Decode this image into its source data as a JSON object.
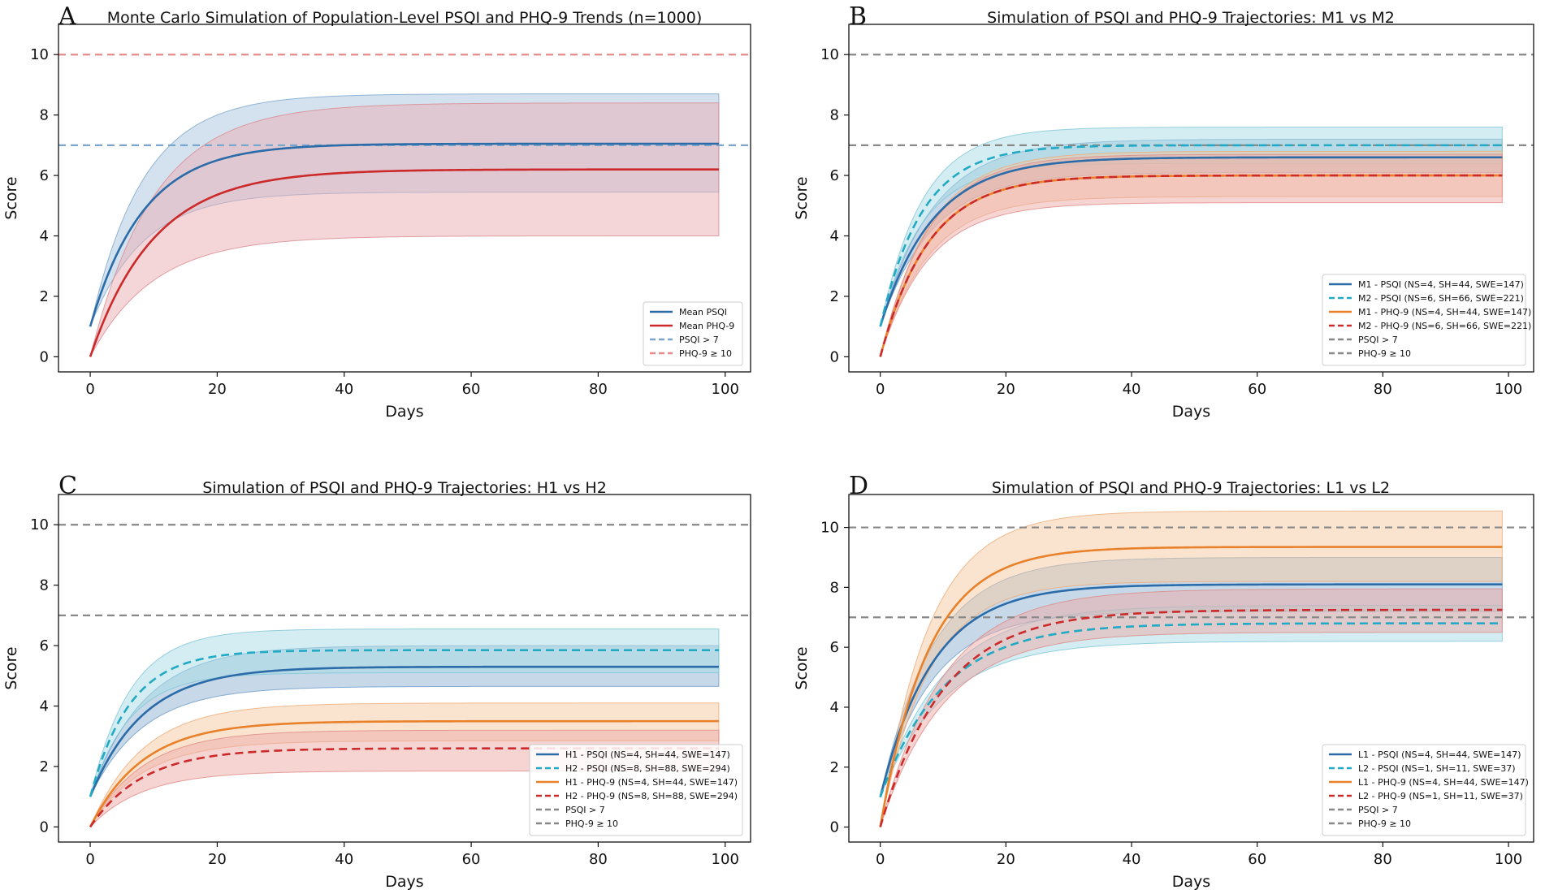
{
  "figure": {
    "panels": [
      {
        "letter": "A",
        "title": "Monte Carlo Simulation of Population-Level PSQI and PHQ-9 Trends (n=1000)",
        "xlabel": "Days",
        "ylabel": "Score",
        "xlim": [
          -5,
          104
        ],
        "ylim": [
          -0.5,
          11.0
        ],
        "xticks": [
          0,
          20,
          40,
          60,
          80,
          100
        ],
        "yticks": [
          0,
          2,
          4,
          6,
          8,
          10
        ],
        "hlines": [
          {
            "y": 7,
            "color": "#7aa5cc",
            "label": "PSQI > 7"
          },
          {
            "y": 10,
            "color": "#e88a8a",
            "label": "PHQ-9 ≥ 10"
          }
        ],
        "series": [
          {
            "name": "Mean PSQI",
            "color": "#2a6ba8",
            "dash": false,
            "start": 1,
            "plateau": 7.05,
            "rate": 0.12,
            "band_low": 5.45,
            "band_high": 8.7,
            "band_color": "#aac6df",
            "band_edge": "#7aa5cc"
          },
          {
            "name": "Mean PHQ-9",
            "color": "#cc2a2a",
            "dash": false,
            "start": 0,
            "plateau": 6.2,
            "rate": 0.1,
            "band_low": 4.0,
            "band_high": 8.4,
            "band_color": "#e9aeb3",
            "band_edge": "#d98a90"
          }
        ],
        "legend": [
          "Mean PSQI",
          "Mean PHQ-9",
          "PSQI > 7",
          "PHQ-9 ≥ 10"
        ]
      },
      {
        "letter": "B",
        "title": "Simulation of PSQI and PHQ-9 Trajectories: M1 vs M2",
        "xlabel": "Days",
        "ylabel": "Score",
        "xlim": [
          -5,
          104
        ],
        "ylim": [
          -0.5,
          11.0
        ],
        "xticks": [
          0,
          20,
          40,
          60,
          80,
          100
        ],
        "yticks": [
          0,
          2,
          4,
          6,
          8,
          10
        ],
        "hlines": [
          {
            "y": 7,
            "color": "#888888",
            "label": "PSQI > 7"
          },
          {
            "y": 10,
            "color": "#888888",
            "label": "PHQ-9 ≥ 10"
          }
        ],
        "series": [
          {
            "name": "M1 - PSQI (NS=4, SH=44, SWE=147)",
            "color": "#2a6ba8",
            "dash": false,
            "start": 1,
            "plateau": 6.6,
            "rate": 0.12,
            "band_low": 6.1,
            "band_high": 7.2,
            "band_color": "#8fb2d4",
            "band_edge": "#6e9cc7"
          },
          {
            "name": "M2 - PSQI (NS=6, SH=66, SWE=221)",
            "color": "#22aac4",
            "dash": true,
            "start": 1,
            "plateau": 7.0,
            "rate": 0.15,
            "band_low": 6.4,
            "band_high": 7.6,
            "band_color": "#a8dce6",
            "band_edge": "#7ec6d6"
          },
          {
            "name": "M1 - PHQ-9 (NS=4, SH=44, SWE=147)",
            "color": "#e8812a",
            "dash": false,
            "start": 0,
            "plateau": 6.0,
            "rate": 0.13,
            "band_low": 5.3,
            "band_high": 6.8,
            "band_color": "#f6c9a2",
            "band_edge": "#eeab78"
          },
          {
            "name": "M2 - PHQ-9 (NS=6, SH=66, SWE=221)",
            "color": "#cc2a2a",
            "dash": true,
            "start": 0,
            "plateau": 6.0,
            "rate": 0.13,
            "band_low": 5.1,
            "band_high": 6.7,
            "band_color": "#eca9a6",
            "band_edge": "#de8a86"
          }
        ],
        "legend": [
          "M1 - PSQI (NS=4, SH=44, SWE=147)",
          "M2 - PSQI (NS=6, SH=66, SWE=221)",
          "M1 - PHQ-9 (NS=4, SH=44, SWE=147)",
          "M2 - PHQ-9 (NS=6, SH=66, SWE=221)",
          "PSQI > 7",
          "PHQ-9 ≥ 10"
        ]
      },
      {
        "letter": "C",
        "title": "Simulation of PSQI and PHQ-9 Trajectories: H1 vs H2",
        "xlabel": "Days",
        "ylabel": "Score",
        "xlim": [
          -5,
          104
        ],
        "ylim": [
          -0.5,
          11.0
        ],
        "xticks": [
          0,
          20,
          40,
          60,
          80,
          100
        ],
        "yticks": [
          0,
          2,
          4,
          6,
          8,
          10
        ],
        "hlines": [
          {
            "y": 7,
            "color": "#888888",
            "label": "PSQI > 7"
          },
          {
            "y": 10,
            "color": "#888888",
            "label": "PHQ-9 ≥ 10"
          }
        ],
        "series": [
          {
            "name": "H1 - PSQI (NS=4, SH=44, SWE=147)",
            "color": "#2a6ba8",
            "dash": false,
            "start": 1,
            "plateau": 5.3,
            "rate": 0.12,
            "band_low": 4.65,
            "band_high": 6.0,
            "band_color": "#8fb2d4",
            "band_edge": "#6e9cc7"
          },
          {
            "name": "H2 - PSQI (NS=8, SH=88, SWE=294)",
            "color": "#22aac4",
            "dash": true,
            "start": 1,
            "plateau": 5.85,
            "rate": 0.16,
            "band_low": 5.1,
            "band_high": 6.55,
            "band_color": "#a8dce6",
            "band_edge": "#7ec6d6"
          },
          {
            "name": "H1 - PHQ-9 (NS=4, SH=44, SWE=147)",
            "color": "#e8812a",
            "dash": false,
            "start": 0,
            "plateau": 3.5,
            "rate": 0.12,
            "band_low": 2.85,
            "band_high": 4.1,
            "band_color": "#f6c9a2",
            "band_edge": "#eeab78"
          },
          {
            "name": "H2 - PHQ-9 (NS=8, SH=88, SWE=294)",
            "color": "#cc2a2a",
            "dash": true,
            "start": 0,
            "plateau": 2.6,
            "rate": 0.12,
            "band_low": 1.85,
            "band_high": 3.2,
            "band_color": "#eca9a6",
            "band_edge": "#de8a86"
          }
        ],
        "legend": [
          "H1 - PSQI (NS=4, SH=44, SWE=147)",
          "H2 - PSQI (NS=8, SH=88, SWE=294)",
          "H1 - PHQ-9 (NS=4, SH=44, SWE=147)",
          "H2 - PHQ-9 (NS=8, SH=88, SWE=294)",
          "PSQI > 7",
          "PHQ-9 ≥ 10"
        ]
      },
      {
        "letter": "D",
        "title": "Simulation of PSQI and PHQ-9 Trajectories: L1 vs L2",
        "xlabel": "Days",
        "ylabel": "Score",
        "xlim": [
          -5,
          104
        ],
        "ylim": [
          -0.5,
          11.1
        ],
        "xticks": [
          0,
          20,
          40,
          60,
          80,
          100
        ],
        "yticks": [
          0,
          2,
          4,
          6,
          8,
          10
        ],
        "hlines": [
          {
            "y": 7,
            "color": "#888888",
            "label": "PSQI > 7"
          },
          {
            "y": 10,
            "color": "#888888",
            "label": "PHQ-9 ≥ 10"
          }
        ],
        "series": [
          {
            "name": "L1 - PSQI (NS=4, SH=44, SWE=147)",
            "color": "#2a6ba8",
            "dash": false,
            "start": 1,
            "plateau": 8.1,
            "rate": 0.12,
            "band_low": 7.2,
            "band_high": 9.0,
            "band_color": "#8fb2d4",
            "band_edge": "#6e9cc7"
          },
          {
            "name": "L2 - PSQI (NS=1, SH=11, SWE=37)",
            "color": "#22aac4",
            "dash": true,
            "start": 1,
            "plateau": 6.8,
            "rate": 0.1,
            "band_low": 6.2,
            "band_high": 7.4,
            "band_color": "#a8dce6",
            "band_edge": "#7ec6d6"
          },
          {
            "name": "L1 - PHQ-9 (NS=4, SH=44, SWE=147)",
            "color": "#e8812a",
            "dash": false,
            "start": 0,
            "plateau": 9.35,
            "rate": 0.13,
            "band_low": 8.2,
            "band_high": 10.55,
            "band_color": "#f6c9a2",
            "band_edge": "#eeab78"
          },
          {
            "name": "L2 - PHQ-9 (NS=1, SH=11, SWE=37)",
            "color": "#cc2a2a",
            "dash": true,
            "start": 0,
            "plateau": 7.25,
            "rate": 0.1,
            "band_low": 6.5,
            "band_high": 7.95,
            "band_color": "#eca9a6",
            "band_edge": "#de8a86"
          }
        ],
        "legend": [
          "L1 - PSQI (NS=4, SH=44, SWE=147)",
          "L2 - PSQI (NS=1, SH=11, SWE=37)",
          "L1 - PHQ-9 (NS=4, SH=44, SWE=147)",
          "L2 - PHQ-9 (NS=1, SH=11, SWE=37)",
          "PSQI > 7",
          "PHQ-9 ≥ 10"
        ]
      }
    ]
  },
  "chart_data": [
    {
      "type": "line",
      "title": "Monte Carlo Simulation of Population-Level PSQI and PHQ-9 Trends (n=1000)",
      "xlabel": "Days",
      "ylabel": "Score",
      "x": [
        0,
        10,
        20,
        40,
        60,
        80,
        99
      ],
      "series": [
        {
          "name": "Mean PSQI",
          "values": [
            1.0,
            5.2,
            6.5,
            7.0,
            7.05,
            7.05,
            7.05
          ],
          "band": [
            [
              1.0,
              1.0
            ],
            [
              5.45,
              8.7
            ]
          ]
        },
        {
          "name": "Mean PHQ-9",
          "values": [
            0.0,
            3.9,
            5.4,
            6.1,
            6.2,
            6.2,
            6.2
          ],
          "band": [
            [
              0.0,
              0.0
            ],
            [
              4.0,
              8.4
            ]
          ]
        }
      ],
      "thresholds": [
        {
          "name": "PSQI > 7",
          "y": 7
        },
        {
          "name": "PHQ-9 ≥ 10",
          "y": 10
        }
      ],
      "xlim": [
        -5,
        104
      ],
      "ylim": [
        -0.5,
        11.0
      ]
    },
    {
      "type": "line",
      "title": "Simulation of PSQI and PHQ-9 Trajectories: M1 vs M2",
      "xlabel": "Days",
      "ylabel": "Score",
      "x": [
        0,
        10,
        20,
        40,
        60,
        80,
        99
      ],
      "series": [
        {
          "name": "M1 - PSQI (NS=4, SH=44, SWE=147)",
          "values": [
            1.0,
            4.9,
            6.1,
            6.55,
            6.6,
            6.6,
            6.6
          ]
        },
        {
          "name": "M2 - PSQI (NS=6, SH=66, SWE=221)",
          "values": [
            1.0,
            5.6,
            6.7,
            7.0,
            7.0,
            7.0,
            7.0
          ]
        },
        {
          "name": "M1 - PHQ-9 (NS=4, SH=44, SWE=147)",
          "values": [
            0.0,
            4.3,
            5.6,
            6.0,
            6.0,
            6.0,
            6.0
          ]
        },
        {
          "name": "M2 - PHQ-9 (NS=6, SH=66, SWE=221)",
          "values": [
            0.0,
            4.3,
            5.6,
            6.0,
            6.0,
            6.0,
            6.0
          ]
        }
      ],
      "thresholds": [
        {
          "name": "PSQI > 7",
          "y": 7
        },
        {
          "name": "PHQ-9 ≥ 10",
          "y": 10
        }
      ],
      "xlim": [
        -5,
        104
      ],
      "ylim": [
        -0.5,
        11.0
      ]
    },
    {
      "type": "line",
      "title": "Simulation of PSQI and PHQ-9 Trajectories: H1 vs H2",
      "xlabel": "Days",
      "ylabel": "Score",
      "x": [
        0,
        10,
        20,
        40,
        60,
        80,
        99
      ],
      "series": [
        {
          "name": "H1 - PSQI (NS=4, SH=44, SWE=147)",
          "values": [
            1.0,
            4.0,
            4.9,
            5.25,
            5.3,
            5.3,
            5.3
          ]
        },
        {
          "name": "H2 - PSQI (NS=8, SH=88, SWE=294)",
          "values": [
            1.0,
            4.9,
            5.6,
            5.85,
            5.85,
            5.85,
            5.85
          ]
        },
        {
          "name": "H1 - PHQ-9 (NS=4, SH=44, SWE=147)",
          "values": [
            0.0,
            2.5,
            3.2,
            3.45,
            3.5,
            3.5,
            3.5
          ]
        },
        {
          "name": "H2 - PHQ-9 (NS=8, SH=88, SWE=294)",
          "values": [
            0.0,
            1.8,
            2.4,
            2.58,
            2.6,
            2.6,
            2.6
          ]
        }
      ],
      "thresholds": [
        {
          "name": "PSQI > 7",
          "y": 7
        },
        {
          "name": "PHQ-9 ≥ 10",
          "y": 10
        }
      ],
      "xlim": [
        -5,
        104
      ],
      "ylim": [
        -0.5,
        11.0
      ]
    },
    {
      "type": "line",
      "title": "Simulation of PSQI and PHQ-9 Trajectories: L1 vs L2",
      "xlabel": "Days",
      "ylabel": "Score",
      "x": [
        0,
        10,
        20,
        40,
        60,
        80,
        99
      ],
      "series": [
        {
          "name": "L1 - PSQI (NS=4, SH=44, SWE=147)",
          "values": [
            1.0,
            6.0,
            7.5,
            8.05,
            8.1,
            8.1,
            8.1
          ]
        },
        {
          "name": "L2 - PSQI (NS=1, SH=11, SWE=37)",
          "values": [
            1.0,
            4.6,
            6.0,
            6.7,
            6.8,
            6.8,
            6.8
          ]
        },
        {
          "name": "L1 - PHQ-9 (NS=4, SH=44, SWE=147)",
          "values": [
            0.0,
            6.7,
            8.6,
            9.3,
            9.35,
            9.35,
            9.35
          ]
        },
        {
          "name": "L2 - PHQ-9 (NS=1, SH=11, SWE=37)",
          "values": [
            0.0,
            4.6,
            6.3,
            7.1,
            7.25,
            7.25,
            7.25
          ]
        }
      ],
      "thresholds": [
        {
          "name": "PSQI > 7",
          "y": 7
        },
        {
          "name": "PHQ-9 ≥ 10",
          "y": 10
        }
      ],
      "xlim": [
        -5,
        104
      ],
      "ylim": [
        -0.5,
        11.1
      ]
    }
  ]
}
